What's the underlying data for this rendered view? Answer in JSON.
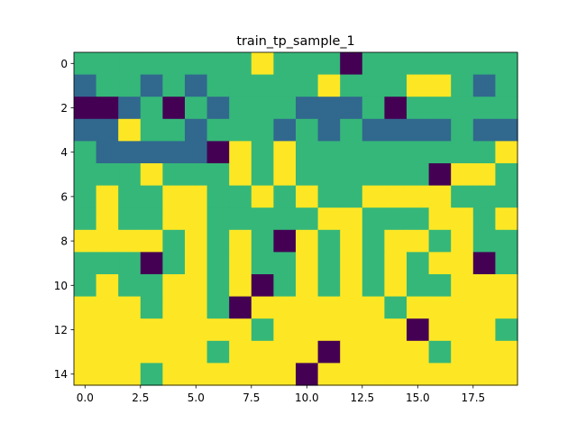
{
  "chart_data": {
    "type": "heatmap",
    "title": "train_tp_sample_1",
    "xlabel": "",
    "ylabel": "",
    "n_rows": 15,
    "n_cols": 20,
    "xlim": [
      -0.5,
      19.5
    ],
    "ylim": [
      14.5,
      -0.5
    ],
    "x_ticks": [
      0.0,
      2.5,
      5.0,
      7.5,
      10.0,
      12.5,
      15.0,
      17.5
    ],
    "x_tick_labels": [
      "0.0",
      "2.5",
      "5.0",
      "7.5",
      "10.0",
      "12.5",
      "15.0",
      "17.5"
    ],
    "y_ticks": [
      0,
      2,
      4,
      6,
      8,
      10,
      12,
      14
    ],
    "y_tick_labels": [
      "0",
      "2",
      "4",
      "6",
      "8",
      "10",
      "12",
      "14"
    ],
    "grid": false,
    "colormap": "viridis",
    "palette": {
      "0": "#440154",
      "1": "#31688e",
      "2": "#35b779",
      "3": "#fde725"
    },
    "values": [
      [
        2,
        2,
        2,
        2,
        2,
        2,
        2,
        2,
        3,
        2,
        2,
        2,
        0,
        2,
        2,
        2,
        2,
        2,
        2,
        2
      ],
      [
        1,
        2,
        2,
        1,
        2,
        1,
        2,
        2,
        2,
        2,
        2,
        3,
        2,
        2,
        2,
        3,
        3,
        2,
        1,
        2
      ],
      [
        0,
        0,
        1,
        2,
        0,
        2,
        1,
        2,
        2,
        2,
        1,
        1,
        1,
        2,
        0,
        2,
        2,
        2,
        2,
        2
      ],
      [
        1,
        1,
        3,
        2,
        2,
        1,
        2,
        2,
        2,
        1,
        2,
        1,
        2,
        1,
        1,
        1,
        1,
        2,
        1,
        1
      ],
      [
        2,
        1,
        1,
        1,
        1,
        1,
        0,
        3,
        2,
        3,
        2,
        2,
        2,
        2,
        2,
        2,
        2,
        2,
        2,
        3
      ],
      [
        2,
        2,
        2,
        3,
        2,
        2,
        2,
        3,
        2,
        3,
        2,
        2,
        2,
        2,
        2,
        2,
        0,
        3,
        3,
        2
      ],
      [
        2,
        3,
        2,
        2,
        3,
        3,
        2,
        2,
        3,
        2,
        3,
        2,
        2,
        3,
        3,
        3,
        3,
        2,
        2,
        2
      ],
      [
        2,
        3,
        2,
        2,
        3,
        3,
        2,
        2,
        2,
        2,
        2,
        3,
        3,
        2,
        2,
        2,
        3,
        3,
        2,
        3
      ],
      [
        3,
        3,
        3,
        3,
        2,
        3,
        2,
        3,
        2,
        0,
        3,
        2,
        3,
        2,
        3,
        3,
        2,
        3,
        2,
        2
      ],
      [
        2,
        2,
        2,
        0,
        2,
        3,
        2,
        3,
        2,
        2,
        3,
        2,
        3,
        2,
        3,
        2,
        3,
        3,
        0,
        2
      ],
      [
        2,
        3,
        2,
        2,
        3,
        3,
        2,
        3,
        0,
        2,
        3,
        2,
        3,
        2,
        3,
        2,
        2,
        3,
        3,
        3
      ],
      [
        3,
        3,
        3,
        2,
        3,
        3,
        2,
        0,
        3,
        3,
        3,
        3,
        3,
        3,
        2,
        3,
        3,
        3,
        3,
        3
      ],
      [
        3,
        3,
        3,
        3,
        3,
        3,
        3,
        3,
        2,
        3,
        3,
        3,
        3,
        3,
        3,
        0,
        3,
        3,
        3,
        2
      ],
      [
        3,
        3,
        3,
        3,
        3,
        3,
        2,
        3,
        3,
        3,
        3,
        0,
        3,
        3,
        3,
        3,
        2,
        3,
        3,
        3
      ],
      [
        3,
        3,
        3,
        2,
        3,
        3,
        3,
        3,
        3,
        3,
        0,
        3,
        3,
        3,
        3,
        3,
        3,
        3,
        3,
        3
      ]
    ]
  }
}
